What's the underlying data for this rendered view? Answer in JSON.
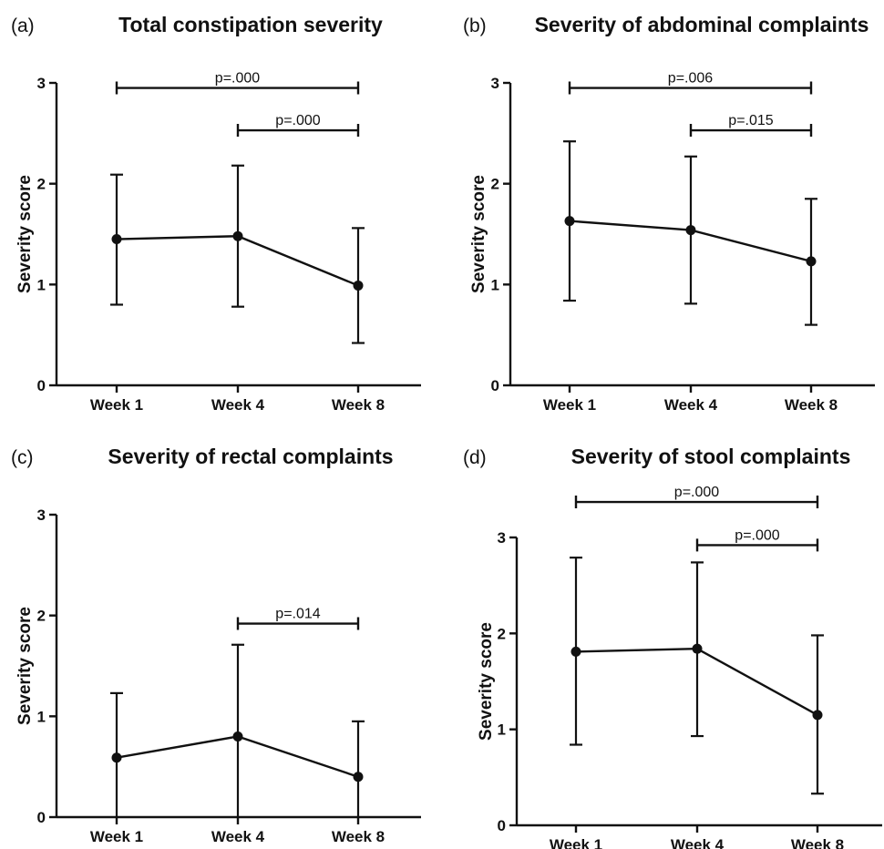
{
  "chart_data": [
    {
      "type": "line",
      "panel": "(a)",
      "title": "Total constipation severity",
      "ylabel": "Severity score",
      "ylim": [
        0,
        3
      ],
      "yticks": [
        "0",
        "1",
        "2",
        "3"
      ],
      "categories": [
        "Week 1",
        "Week 4",
        "Week 8"
      ],
      "series": [
        {
          "values": [
            1.45,
            1.48,
            0.99
          ],
          "error_low": [
            0.8,
            0.78,
            0.42
          ],
          "error_high": [
            2.09,
            2.18,
            1.56
          ]
        }
      ],
      "annotations": [
        {
          "from": "Week 1",
          "to": "Week 8",
          "text": "p=.000",
          "y": 2.95
        },
        {
          "from": "Week 4",
          "to": "Week 8",
          "text": "p=.000",
          "y": 2.53
        }
      ]
    },
    {
      "type": "line",
      "panel": "(b)",
      "title": "Severity of abdominal complaints",
      "ylabel": "Severity score",
      "ylim": [
        0,
        3
      ],
      "yticks": [
        "0",
        "1",
        "2",
        "3"
      ],
      "categories": [
        "Week 1",
        "Week 4",
        "Week 8"
      ],
      "series": [
        {
          "values": [
            1.63,
            1.54,
            1.23
          ],
          "error_low": [
            0.84,
            0.81,
            0.6
          ],
          "error_high": [
            2.42,
            2.27,
            1.85
          ]
        }
      ],
      "annotations": [
        {
          "from": "Week 1",
          "to": "Week 8",
          "text": "p=.006",
          "y": 2.95
        },
        {
          "from": "Week 4",
          "to": "Week 8",
          "text": "p=.015",
          "y": 2.53
        }
      ]
    },
    {
      "type": "line",
      "panel": "(c)",
      "title": "Severity of rectal complaints",
      "ylabel": "Severity score",
      "ylim": [
        0,
        3
      ],
      "yticks": [
        "0",
        "1",
        "2",
        "3"
      ],
      "categories": [
        "Week 1",
        "Week 4",
        "Week 8"
      ],
      "series": [
        {
          "values": [
            0.59,
            0.8,
            0.4
          ],
          "error_low": [
            0.0,
            0.0,
            0.0
          ],
          "error_high": [
            1.23,
            1.71,
            0.95
          ]
        }
      ],
      "annotations": [
        {
          "from": "Week 4",
          "to": "Week 8",
          "text": "p=.014",
          "y": 1.92
        }
      ]
    },
    {
      "type": "line",
      "panel": "(d)",
      "title": "Severity of stool complaints",
      "ylabel": "Severity score",
      "ylim": [
        0,
        3
      ],
      "yticks": [
        "0",
        "1",
        "2",
        "3"
      ],
      "categories": [
        "Week 1",
        "Week 4",
        "Week 8"
      ],
      "series": [
        {
          "values": [
            1.81,
            1.84,
            1.15
          ],
          "error_low": [
            0.84,
            0.93,
            0.33
          ],
          "error_high": [
            2.79,
            2.74,
            1.98
          ]
        }
      ],
      "annotations": [
        {
          "from": "Week 1",
          "to": "Week 8",
          "text": "p=.000",
          "y": 3.37
        },
        {
          "from": "Week 4",
          "to": "Week 8",
          "text": "p=.000",
          "y": 2.92
        }
      ]
    }
  ]
}
